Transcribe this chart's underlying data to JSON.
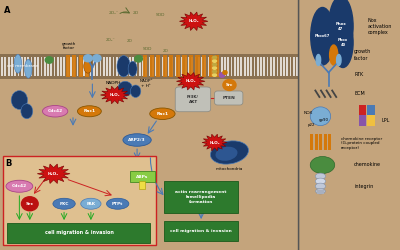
{
  "bg_color": "#c4a47c",
  "fig_width": 4.0,
  "fig_height": 2.5,
  "dpi": 100,
  "blue_dark": "#1a3a6b",
  "blue_mid": "#4a7ab5",
  "blue_light": "#7aadd4",
  "blue_pale": "#a8c8e8",
  "orange_color": "#d4780a",
  "green_color": "#4a8c3f",
  "red_burst": "#cc1111",
  "pink_color": "#d87ab0",
  "dark_red": "#881111",
  "green_box": "#2d7a2d",
  "membrane_brown": "#7a6040",
  "gray_light": "#c8c8c8",
  "yellow_color": "#e8d840",
  "purple_color": "#8855aa",
  "panel_b_bg": "#dfc090"
}
